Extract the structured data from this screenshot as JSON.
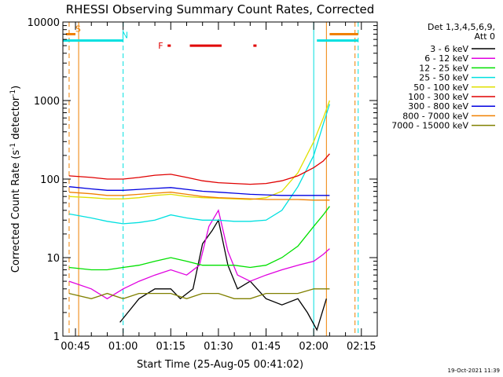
{
  "chart_data": {
    "type": "line",
    "title": "RHESSI Observing Summary Count Rates, Corrected",
    "xlabel": "Start Time (25-Aug-05 00:41:02)",
    "ylabel": "Corrected Count Rate (s⁻¹ detector⁻¹)",
    "ylabel_base": "Corrected Count Rate (s",
    "ylabel_sup1": "-1",
    "ylabel_mid": " detector",
    "ylabel_sup2": "-1",
    "ylabel_end": ")",
    "y_scale": "log",
    "xlim": [
      "00:41:02",
      "02:20:00"
    ],
    "ylim": [
      1,
      10000
    ],
    "x_ticks": [
      "00:45",
      "01:00",
      "01:15",
      "01:30",
      "01:45",
      "02:00",
      "02:15"
    ],
    "y_ticks": [
      "1",
      "10",
      "100",
      "1000",
      "10000"
    ],
    "legend": {
      "placement": "right",
      "header": [
        "Det 1,3,4,5,6,9,",
        "Att 0"
      ],
      "entries": [
        {
          "label": "3 - 6 keV",
          "color": "#000000"
        },
        {
          "label": "6 - 12 keV",
          "color": "#e000e0"
        },
        {
          "label": "12 - 25 keV",
          "color": "#00e000"
        },
        {
          "label": "25 - 50 keV",
          "color": "#00e0e0"
        },
        {
          "label": "50 - 100 keV",
          "color": "#e0e000"
        },
        {
          "label": "100 - 300 keV",
          "color": "#e00000"
        },
        {
          "label": "300 - 800 keV",
          "color": "#0000e0"
        },
        {
          "label": "800 - 7000 keV",
          "color": "#f08000"
        },
        {
          "label": "7000 - 15000 keV",
          "color": "#808000"
        }
      ]
    },
    "series": [
      {
        "name": "3 - 6 keV",
        "color": "#000000",
        "x": [
          "00:59",
          "01:05",
          "01:10",
          "01:15",
          "01:18",
          "01:22",
          "01:25",
          "01:28",
          "01:30",
          "01:33",
          "01:36",
          "01:40",
          "01:45",
          "01:50",
          "01:55",
          "01:58",
          "02:01",
          "02:04"
        ],
        "y": [
          1.5,
          3,
          4,
          4,
          3,
          4,
          15,
          22,
          30,
          8,
          4,
          5,
          3,
          2.5,
          3,
          2,
          1.2,
          3
        ]
      },
      {
        "name": "6 - 12 keV",
        "color": "#e000e0",
        "x": [
          "00:43",
          "00:50",
          "00:55",
          "01:00",
          "01:05",
          "01:10",
          "01:15",
          "01:20",
          "01:24",
          "01:27",
          "01:30",
          "01:33",
          "01:36",
          "01:40",
          "01:45",
          "01:50",
          "01:55",
          "02:00",
          "02:03",
          "02:05"
        ],
        "y": [
          5,
          4,
          3,
          4,
          5,
          6,
          7,
          6,
          8,
          25,
          40,
          12,
          6,
          5,
          6,
          7,
          8,
          9,
          11,
          13
        ]
      },
      {
        "name": "12 - 25 keV",
        "color": "#00e000",
        "x": [
          "00:43",
          "00:50",
          "00:55",
          "01:00",
          "01:05",
          "01:10",
          "01:15",
          "01:20",
          "01:25",
          "01:30",
          "01:35",
          "01:40",
          "01:45",
          "01:50",
          "01:55",
          "02:00",
          "02:03",
          "02:05"
        ],
        "y": [
          7.5,
          7,
          7,
          7.5,
          8,
          9,
          10,
          9,
          8,
          8,
          8,
          7.5,
          8,
          10,
          14,
          25,
          35,
          45
        ]
      },
      {
        "name": "25 - 50 keV",
        "color": "#00e0e0",
        "x": [
          "00:43",
          "00:50",
          "00:55",
          "01:00",
          "01:05",
          "01:10",
          "01:15",
          "01:20",
          "01:25",
          "01:30",
          "01:35",
          "01:40",
          "01:45",
          "01:50",
          "01:55",
          "02:00",
          "02:03",
          "02:05"
        ],
        "y": [
          36,
          32,
          29,
          27,
          28,
          30,
          35,
          32,
          30,
          30,
          29,
          29,
          30,
          40,
          80,
          200,
          500,
          900
        ]
      },
      {
        "name": "50 - 100 keV",
        "color": "#e0e000",
        "x": [
          "00:43",
          "00:50",
          "00:55",
          "01:00",
          "01:05",
          "01:10",
          "01:15",
          "01:20",
          "01:25",
          "01:30",
          "01:35",
          "01:40",
          "01:45",
          "01:50",
          "01:55",
          "02:00",
          "02:03",
          "02:05"
        ],
        "y": [
          60,
          58,
          56,
          56,
          58,
          62,
          64,
          60,
          58,
          57,
          56,
          55,
          58,
          70,
          120,
          300,
          600,
          1000
        ]
      },
      {
        "name": "100 - 300 keV",
        "color": "#e00000",
        "x": [
          "00:43",
          "00:50",
          "00:55",
          "01:00",
          "01:05",
          "01:10",
          "01:15",
          "01:20",
          "01:25",
          "01:30",
          "01:35",
          "01:40",
          "01:45",
          "01:50",
          "01:55",
          "02:00",
          "02:03",
          "02:05"
        ],
        "y": [
          110,
          105,
          100,
          100,
          105,
          112,
          115,
          105,
          95,
          90,
          88,
          86,
          88,
          95,
          110,
          140,
          170,
          210
        ]
      },
      {
        "name": "300 - 800 keV",
        "color": "#0000e0",
        "x": [
          "00:43",
          "00:50",
          "00:55",
          "01:00",
          "01:05",
          "01:10",
          "01:15",
          "01:20",
          "01:25",
          "01:30",
          "01:35",
          "01:40",
          "01:45",
          "01:50",
          "01:55",
          "02:00",
          "02:05"
        ],
        "y": [
          80,
          75,
          72,
          72,
          74,
          76,
          78,
          74,
          70,
          68,
          66,
          64,
          63,
          62,
          62,
          62,
          62
        ]
      },
      {
        "name": "800 - 7000 keV",
        "color": "#f08000",
        "x": [
          "00:43",
          "00:50",
          "00:55",
          "01:00",
          "01:05",
          "01:10",
          "01:15",
          "01:20",
          "01:25",
          "01:30",
          "01:35",
          "01:40",
          "01:45",
          "01:50",
          "01:55",
          "02:00",
          "02:05"
        ],
        "y": [
          68,
          65,
          62,
          62,
          64,
          66,
          68,
          64,
          60,
          58,
          57,
          56,
          55,
          55,
          55,
          54,
          54
        ]
      },
      {
        "name": "7000 - 15000 keV",
        "color": "#808000",
        "x": [
          "00:43",
          "00:50",
          "00:55",
          "01:00",
          "01:05",
          "01:10",
          "01:15",
          "01:20",
          "01:25",
          "01:30",
          "01:35",
          "01:40",
          "01:45",
          "01:50",
          "01:55",
          "02:00",
          "02:05"
        ],
        "y": [
          3.5,
          3,
          3.5,
          3,
          3.5,
          3.5,
          3.5,
          3,
          3.5,
          3.5,
          3,
          3,
          3.5,
          3.5,
          3.5,
          4,
          4
        ]
      }
    ],
    "flag_bars": [
      {
        "label": "S",
        "color": "#f08000",
        "x": [
          "00:42",
          "00:45"
        ],
        "y": 7000
      },
      {
        "label": "",
        "color": "#f08000",
        "x": [
          "02:05",
          "02:14"
        ],
        "y": 7000
      },
      {
        "label": "F",
        "color": "#e00000",
        "x": [
          "01:14",
          "01:15"
        ],
        "y": 5000
      },
      {
        "label": "",
        "color": "#e00000",
        "x": [
          "01:21",
          "01:31"
        ],
        "y": 5000
      },
      {
        "label": "",
        "color": "#e00000",
        "x": [
          "01:41",
          "01:42"
        ],
        "y": 5000
      },
      {
        "label": "N",
        "color": "#00e0e0",
        "x": [
          "00:41",
          "01:00"
        ],
        "y": 5800
      },
      {
        "label": "",
        "color": "#00e0e0",
        "x": [
          "02:01",
          "02:14"
        ],
        "y": 5800
      }
    ],
    "vlines": [
      {
        "x": "00:41",
        "color": "#00e0e0",
        "style": "solid"
      },
      {
        "x": "00:43",
        "color": "#f08000",
        "style": "dashed"
      },
      {
        "x": "00:46",
        "color": "#f08000",
        "style": "solid"
      },
      {
        "x": "01:00",
        "color": "#00e0e0",
        "style": "dashed"
      },
      {
        "x": "02:00",
        "color": "#00e0e0",
        "style": "solid"
      },
      {
        "x": "02:04",
        "color": "#f08000",
        "style": "solid"
      },
      {
        "x": "02:13",
        "color": "#f08000",
        "style": "dashed"
      },
      {
        "x": "02:14",
        "color": "#00e0e0",
        "style": "dashed"
      }
    ]
  },
  "footer_timestamp": "19-Oct-2021 11:39"
}
